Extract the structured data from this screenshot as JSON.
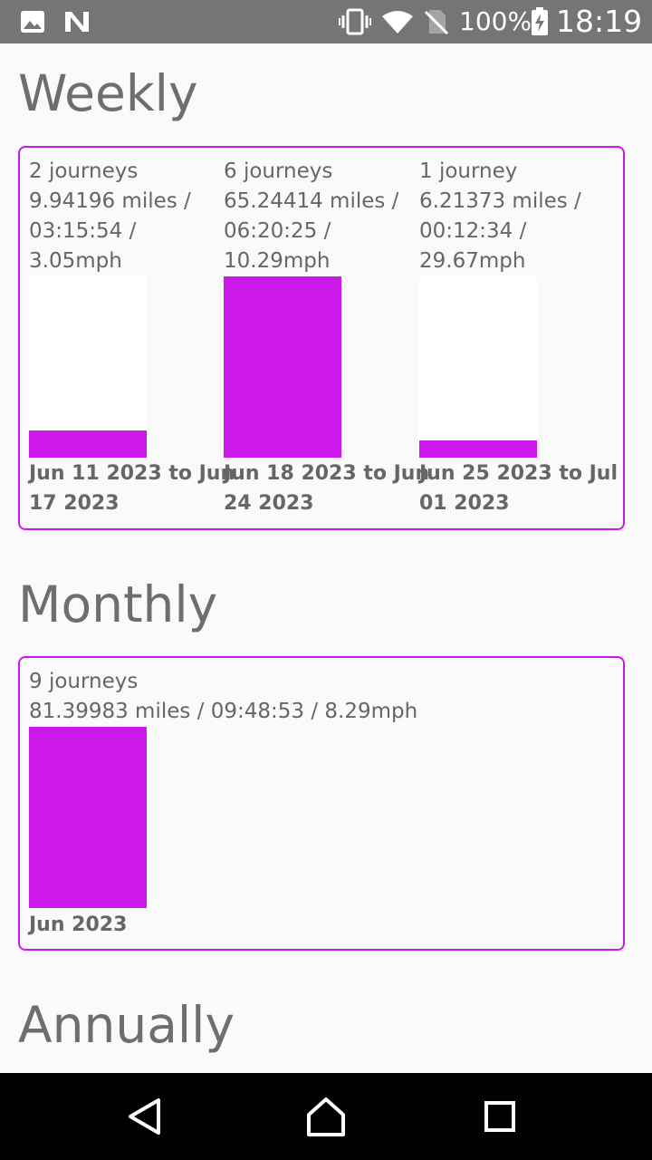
{
  "status_bar": {
    "battery": "100%",
    "time": "18:19",
    "icons": [
      "image-icon",
      "n-logo-icon",
      "vibrate-icon",
      "wifi-icon",
      "no-sim-icon",
      "battery-charging-icon"
    ]
  },
  "sections": {
    "weekly": {
      "title": "Weekly",
      "items": [
        {
          "journeys": "2 journeys",
          "distance": "9.94196 miles /",
          "duration": "03:15:54 /",
          "speed": "3.05mph",
          "period_line1": "Jun 11 2023 to Jun",
          "period_line2": "17 2023",
          "bar_fraction": 0.152
        },
        {
          "journeys": "6 journeys",
          "distance": "65.24414 miles /",
          "duration": "06:20:25 /",
          "speed": "10.29mph",
          "period_line1": "Jun 18 2023 to Jun",
          "period_line2": "24 2023",
          "bar_fraction": 1.0
        },
        {
          "journeys": "1 journey",
          "distance": "6.21373 miles /",
          "duration": "00:12:34 /",
          "speed": "29.67mph",
          "period_line1": "Jun 25 2023 to Jul",
          "period_line2": "01 2023",
          "bar_fraction": 0.095
        }
      ]
    },
    "monthly": {
      "title": "Monthly",
      "items": [
        {
          "journeys": "9 journeys",
          "summary": "81.39983 miles / 09:48:53 / 8.29mph",
          "period": "Jun 2023",
          "bar_fraction": 1.0
        }
      ]
    },
    "annually": {
      "title": "Annually"
    }
  },
  "nav_bar": {
    "buttons": [
      "back-icon",
      "home-icon",
      "recents-icon"
    ]
  },
  "colors": {
    "accent": "#cc18e8",
    "status_bar": "#757575",
    "nav_bar": "#000000",
    "text": "#666666"
  }
}
